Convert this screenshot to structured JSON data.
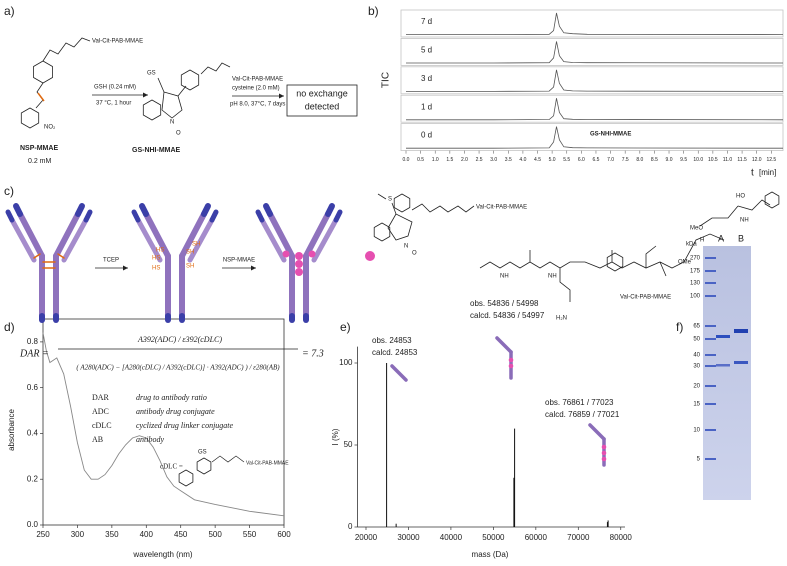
{
  "panel_labels": [
    "a)",
    "b)",
    "c)",
    "d)",
    "e)",
    "f)"
  ],
  "scheme_a": {
    "start_chain": "Val-Cit-PAB-MMAE",
    "nitro": "NO₂",
    "start_name": "NSP-MMAE",
    "start_conc": "0.2 mM",
    "step1_reagent": "GSH (0.24 mM)",
    "step1_conditions": "37 °C, 1 hour",
    "product_thiol": "GS",
    "product_chain": "Val-Cit-PAB-MMAE",
    "product_n": "N",
    "product_o": "O",
    "product_name": "GS-NHI-MMAE",
    "step2_reagent": "cysteine (2.0 mM)",
    "step2_conditions": "pH 8.0, 37°C, 7 days",
    "result": [
      "no exchange",
      "detected"
    ]
  },
  "scheme_c": {
    "step1": "TCEP",
    "step2": "NSP-MMAE",
    "thiol": "SH",
    "thiol_flipped": "HS",
    "linker_chain": "Val-Cit-PAB-MMAE",
    "payload_name": "Val-Cit-PAB-MMAE",
    "atoms": {
      "hydroxyl": "HO",
      "methoxy_a": "MeO",
      "methoxy_b": "OMe",
      "hydrogen": "H",
      "nitrogen": "N",
      "oxygen": "O",
      "amine": "NH",
      "amino": "H₂N",
      "sulfur": "S"
    }
  },
  "chart_data": [
    {
      "type": "chromatogram",
      "x_label": "t",
      "x_unit": "[min]",
      "y_label": "TIC",
      "annotation": "GS-NHI-MMAE",
      "x": [
        0,
        3,
        4.9,
        5.05,
        5.15,
        5.25,
        5.4,
        5.7,
        6.2,
        12.9
      ],
      "series": [
        {
          "name": "7 d",
          "values": [
            2,
            2,
            3,
            20,
            100,
            40,
            10,
            6,
            3,
            2
          ]
        },
        {
          "name": "5 d",
          "values": [
            2,
            2,
            3,
            25,
            100,
            35,
            8,
            4,
            3,
            2
          ]
        },
        {
          "name": "3 d",
          "values": [
            2,
            2,
            3,
            22,
            100,
            38,
            8,
            4,
            3,
            2
          ]
        },
        {
          "name": "1 d",
          "values": [
            2,
            2,
            3,
            20,
            100,
            35,
            7,
            4,
            3,
            2
          ]
        },
        {
          "name": "0 d",
          "values": [
            2,
            2,
            3,
            30,
            100,
            40,
            8,
            4,
            3,
            2
          ]
        }
      ],
      "color": "#555555",
      "xlim": [
        0,
        12.9
      ],
      "ylim": [
        0,
        100
      ],
      "xticks": [
        {
          "value": 0,
          "label": "0.0"
        },
        0.5,
        {
          "value": 1,
          "label": "1.0"
        },
        1.5,
        {
          "value": 2,
          "label": "2.0"
        },
        2.5,
        {
          "value": 3,
          "label": "3.0"
        },
        3.5,
        {
          "value": 4,
          "label": "4.0"
        },
        4.5,
        {
          "value": 5,
          "label": "5.0"
        },
        5.5,
        {
          "value": 6,
          "label": "6.0"
        },
        6.5,
        {
          "value": 7,
          "label": "7.0"
        },
        7.5,
        {
          "value": 8,
          "label": "8.0"
        },
        8.5,
        {
          "value": 9,
          "label": "9.0"
        },
        9.5,
        {
          "value": 10,
          "label": "10.0"
        },
        10.5,
        {
          "value": 11,
          "label": "11.0"
        },
        11.5,
        {
          "value": 12,
          "label": "12.0"
        },
        12.5
      ]
    },
    {
      "type": "line",
      "x_label": "wavelength (nm)",
      "y_label": "absorbance",
      "formula": {
        "lhs": "DAR =",
        "numerator": "A392(ADC) / ε392(cDLC)",
        "denominator": "( A280(ADC) − [A280(cDLC) / A392(cDLC)] · A392(ADC) ) / ε280(AB)",
        "result": "= 7.3"
      },
      "definitions": [
        {
          "abbr": "DAR",
          "meaning": "drug to antibody ratio"
        },
        {
          "abbr": "ADC",
          "meaning": "antibody drug conjugate"
        },
        {
          "abbr": "cDLC",
          "meaning": "cyclized drug linker conjugate"
        },
        {
          "abbr": "AB",
          "meaning": "antibody"
        }
      ],
      "structure_label": "cDLC =",
      "structure_thiol": "GS",
      "structure_chain": "Val-Cit-PAB-MMAE",
      "x": [
        250,
        255,
        260,
        265,
        270,
        280,
        290,
        300,
        310,
        320,
        330,
        340,
        350,
        360,
        370,
        380,
        390,
        400,
        410,
        420,
        430,
        440,
        450,
        470,
        500,
        550,
        600
      ],
      "values": [
        0.84,
        0.76,
        0.71,
        0.72,
        0.73,
        0.66,
        0.52,
        0.36,
        0.24,
        0.2,
        0.2,
        0.22,
        0.26,
        0.31,
        0.35,
        0.38,
        0.39,
        0.38,
        0.34,
        0.28,
        0.21,
        0.17,
        0.15,
        0.11,
        0.09,
        0.06,
        0.04
      ],
      "color": "#888888",
      "xlim": [
        250,
        600
      ],
      "ylim": [
        0,
        0.9
      ],
      "xticks": [
        250,
        300,
        350,
        400,
        450,
        500,
        550,
        600
      ],
      "yticks": [
        {
          "value": 0,
          "label": "0.0"
        },
        0.2,
        0.4,
        0.6,
        0.8
      ]
    },
    {
      "type": "spectrum",
      "x_label": "mass (Da)",
      "y_label": "I (%)",
      "annotations": [
        {
          "obs": "obs. 24853",
          "calcd": "calcd. 24853"
        },
        {
          "obs": "obs. 54836 / 54998",
          "calcd": "calcd. 54836 / 54997"
        },
        {
          "obs": "obs. 76861 / 77023",
          "calcd": "calcd. 76859 / 77021"
        }
      ],
      "x": [
        24853,
        27100,
        54836,
        54998,
        76861,
        77023
      ],
      "values": [
        100,
        2,
        30,
        60,
        3,
        4
      ],
      "color": "#111111",
      "xlim": [
        18000,
        81000
      ],
      "ylim": [
        0,
        110
      ],
      "xticks": [
        20000,
        30000,
        40000,
        50000,
        60000,
        70000,
        80000
      ],
      "yticks": [
        0,
        50,
        100
      ]
    }
  ],
  "gel": {
    "unit": "kDa",
    "markers": [
      270,
      175,
      130,
      100,
      65,
      50,
      40,
      30,
      20,
      15,
      10,
      5
    ],
    "lanes": [
      "A",
      "B"
    ]
  }
}
